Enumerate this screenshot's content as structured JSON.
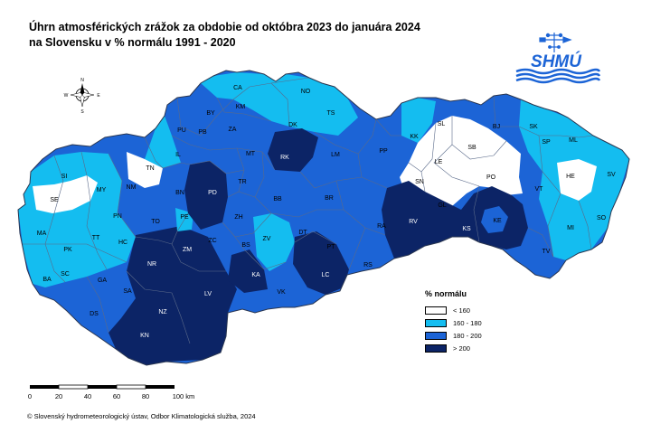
{
  "title_line1": "Úhrn atmosférických zrážok za obdobie od októbra 2023 do januára 2024",
  "title_line2": "na Slovensku v % normálu 1991 - 2020",
  "logo_text": "SHMÚ",
  "compass": {
    "n": "N",
    "s": "S",
    "e": "E",
    "w": "W"
  },
  "legend": {
    "title": "% normálu",
    "items": [
      {
        "label": "< 160",
        "color": "#ffffff"
      },
      {
        "label": "160 - 180",
        "color": "#14bdf0"
      },
      {
        "label": "180 - 200",
        "color": "#1c64d6"
      },
      {
        "label": "> 200",
        "color": "#0c2466"
      }
    ]
  },
  "scale_bar": {
    "ticks": [
      "0",
      "20",
      "40",
      "60",
      "80",
      "100 km"
    ]
  },
  "footer": "© Slovenský hydrometeorologický ústav, Odbor Klimatologická služba, 2024",
  "districts": [
    {
      "id": "CA",
      "cls": "c3"
    },
    {
      "id": "NO",
      "cls": "c2"
    },
    {
      "id": "BY",
      "cls": "c2"
    },
    {
      "id": "KM",
      "cls": "c3"
    },
    {
      "id": "TS",
      "cls": "c2"
    },
    {
      "id": "DK",
      "cls": "c2"
    },
    {
      "id": "PU",
      "cls": "c3"
    },
    {
      "id": "PB",
      "cls": "c3"
    },
    {
      "id": "ZA",
      "cls": "c3"
    },
    {
      "id": "IL",
      "cls": "c2"
    },
    {
      "id": "MT",
      "cls": "c3"
    },
    {
      "id": "RK",
      "cls": "c4"
    },
    {
      "id": "LM",
      "cls": "c3"
    },
    {
      "id": "PP",
      "cls": "c3"
    },
    {
      "id": "SL",
      "cls": "c1"
    },
    {
      "id": "KK",
      "cls": "c2"
    },
    {
      "id": "BJ",
      "cls": "c3"
    },
    {
      "id": "SK",
      "cls": "c2"
    },
    {
      "id": "SP",
      "cls": "c2"
    },
    {
      "id": "ML",
      "cls": "c2"
    },
    {
      "id": "SB",
      "cls": "c1"
    },
    {
      "id": "LE",
      "cls": "c1"
    },
    {
      "id": "PO",
      "cls": "c1"
    },
    {
      "id": "HE",
      "cls": "c1"
    },
    {
      "id": "SV",
      "cls": "c2"
    },
    {
      "id": "VT",
      "cls": "c2"
    },
    {
      "id": "SN",
      "cls": "c1"
    },
    {
      "id": "GL",
      "cls": "c1"
    },
    {
      "id": "SI",
      "cls": "c2"
    },
    {
      "id": "TN",
      "cls": "c1"
    },
    {
      "id": "MY",
      "cls": "c1"
    },
    {
      "id": "NM",
      "cls": "c2"
    },
    {
      "id": "SE",
      "cls": "c1"
    },
    {
      "id": "PD",
      "cls": "c4"
    },
    {
      "id": "BN",
      "cls": "c3"
    },
    {
      "id": "TR",
      "cls": "c3"
    },
    {
      "id": "BB",
      "cls": "c3"
    },
    {
      "id": "BR",
      "cls": "c3"
    },
    {
      "id": "RV",
      "cls": "c4"
    },
    {
      "id": "KS",
      "cls": "c4"
    },
    {
      "id": "KE",
      "cls": "c3"
    },
    {
      "id": "MI",
      "cls": "c2"
    },
    {
      "id": "SO",
      "cls": "c2"
    },
    {
      "id": "PN",
      "cls": "c2"
    },
    {
      "id": "TO",
      "cls": "c3"
    },
    {
      "id": "PE",
      "cls": "c2"
    },
    {
      "id": "ZH",
      "cls": "c3"
    },
    {
      "id": "ZV",
      "cls": "c2"
    },
    {
      "id": "DT",
      "cls": "c3"
    },
    {
      "id": "RA",
      "cls": "c3"
    },
    {
      "id": "MA",
      "cls": "c2"
    },
    {
      "id": "TT",
      "cls": "c2"
    },
    {
      "id": "HC",
      "cls": "c2"
    },
    {
      "id": "PK",
      "cls": "c2"
    },
    {
      "id": "ZC",
      "cls": "c3"
    },
    {
      "id": "BS",
      "cls": "c3"
    },
    {
      "id": "PT",
      "cls": "c3"
    },
    {
      "id": "TV",
      "cls": "c3"
    },
    {
      "id": "NR",
      "cls": "c4"
    },
    {
      "id": "ZM",
      "cls": "c4"
    },
    {
      "id": "GA",
      "cls": "c3"
    },
    {
      "id": "SC",
      "cls": "c2"
    },
    {
      "id": "BA",
      "cls": "c2"
    },
    {
      "id": "SA",
      "cls": "c3"
    },
    {
      "id": "KA",
      "cls": "c4"
    },
    {
      "id": "LC",
      "cls": "c4"
    },
    {
      "id": "RS",
      "cls": "c3"
    },
    {
      "id": "LV",
      "cls": "c4"
    },
    {
      "id": "VK",
      "cls": "c3"
    },
    {
      "id": "DS",
      "cls": "c3"
    },
    {
      "id": "NZ",
      "cls": "c4"
    },
    {
      "id": "KN",
      "cls": "c4"
    }
  ]
}
